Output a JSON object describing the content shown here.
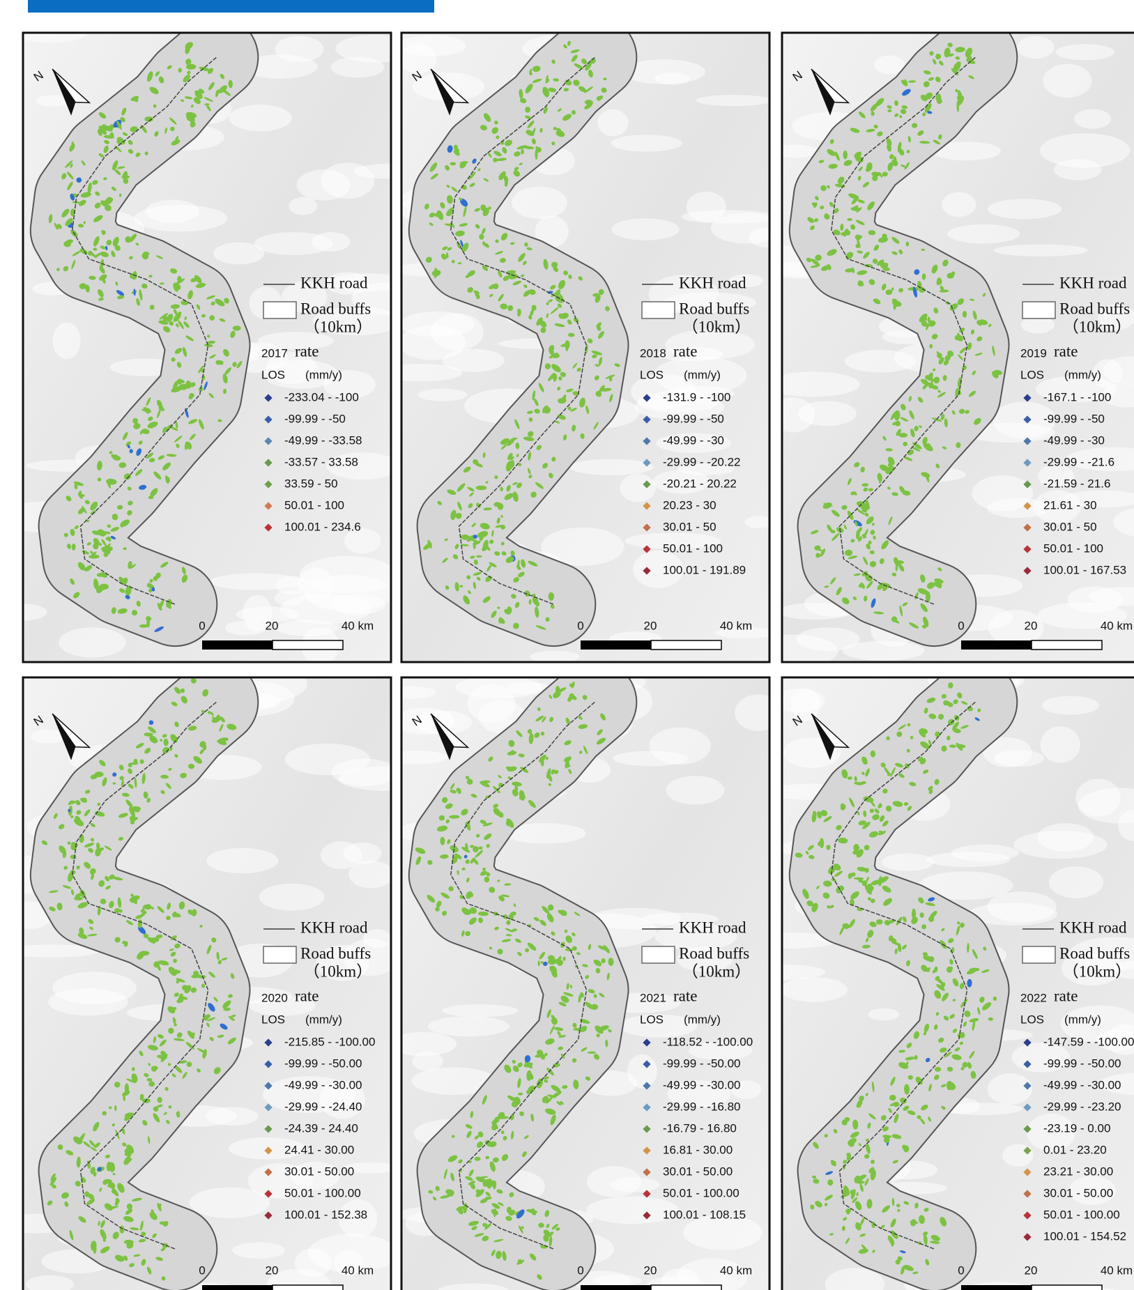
{
  "figure": {
    "north_label": "N",
    "legend_common": {
      "road": "KKH road",
      "buffer": "Road buffs",
      "buffer_width": "（10km）",
      "rate": "rate",
      "los": "LOS",
      "unit": "(mm/y)"
    },
    "scale_bar": {
      "zero": "0",
      "mid": "20",
      "end": "40 km"
    },
    "panels": [
      {
        "year": "2017",
        "classes": [
          {
            "label": "-233.04 - -100",
            "color": "#2b3f8c"
          },
          {
            "label": "-99.99 - -50",
            "color": "#3a5fa8"
          },
          {
            "label": "-49.99 - -33.58",
            "color": "#5b87b0"
          },
          {
            "label": "-33.57 - 33.58",
            "color": "#6a9a50"
          },
          {
            "label": "33.59 - 50",
            "color": "#6fa04e"
          },
          {
            "label": "50.01 - 100",
            "color": "#d07a52"
          },
          {
            "label": "100.01 - 234.6",
            "color": "#b8333a"
          }
        ]
      },
      {
        "year": "2018",
        "classes": [
          {
            "label": "-131.9 - -100",
            "color": "#2b3f8c"
          },
          {
            "label": "-99.99 - -50",
            "color": "#3a5fa8"
          },
          {
            "label": "-49.99 - -30",
            "color": "#4f78aa"
          },
          {
            "label": "-29.99 - -20.22",
            "color": "#6d9bc0"
          },
          {
            "label": "-20.21 - 20.22",
            "color": "#6a9a50"
          },
          {
            "label": "20.23 - 30",
            "color": "#d2954a"
          },
          {
            "label": "30.01 - 50",
            "color": "#c0704a"
          },
          {
            "label": "50.01 - 100",
            "color": "#b8333a"
          },
          {
            "label": "100.01 - 191.89",
            "color": "#9a2a3a"
          }
        ]
      },
      {
        "year": "2019",
        "classes": [
          {
            "label": "-167.1 - -100",
            "color": "#2b3f8c"
          },
          {
            "label": "-99.99 - -50",
            "color": "#3a5fa8"
          },
          {
            "label": "-49.99 - -30",
            "color": "#4f78aa"
          },
          {
            "label": "-29.99 - -21.6",
            "color": "#6d9bc0"
          },
          {
            "label": "-21.59 - 21.6",
            "color": "#6a9a50"
          },
          {
            "label": "21.61 - 30",
            "color": "#d2954a"
          },
          {
            "label": "30.01 - 50",
            "color": "#c0704a"
          },
          {
            "label": "50.01 - 100",
            "color": "#b8333a"
          },
          {
            "label": "100.01 - 167.53",
            "color": "#9a2a3a"
          }
        ]
      },
      {
        "year": "2020",
        "classes": [
          {
            "label": "-215.85 - -100.00",
            "color": "#2b3f8c"
          },
          {
            "label": "-99.99 - -50.00",
            "color": "#3a5fa8"
          },
          {
            "label": "-49.99 - -30.00",
            "color": "#4f78aa"
          },
          {
            "label": "-29.99 - -24.40",
            "color": "#6d9bc0"
          },
          {
            "label": "-24.39 - 24.40",
            "color": "#6a9a50"
          },
          {
            "label": "24.41 - 30.00",
            "color": "#d2954a"
          },
          {
            "label": "30.01 - 50.00",
            "color": "#c0704a"
          },
          {
            "label": "50.01 - 100.00",
            "color": "#b8333a"
          },
          {
            "label": "100.01 - 152.38",
            "color": "#9a2a3a"
          }
        ]
      },
      {
        "year": "2021",
        "classes": [
          {
            "label": "-118.52 - -100.00",
            "color": "#2b3f8c"
          },
          {
            "label": "-99.99 - -50.00",
            "color": "#3a5fa8"
          },
          {
            "label": "-49.99 - -30.00",
            "color": "#4f78aa"
          },
          {
            "label": "-29.99 - -16.80",
            "color": "#6d9bc0"
          },
          {
            "label": "-16.79 - 16.80",
            "color": "#6a9a50"
          },
          {
            "label": "16.81 - 30.00",
            "color": "#d2954a"
          },
          {
            "label": "30.01 - 50.00",
            "color": "#c0704a"
          },
          {
            "label": "50.01 - 100.00",
            "color": "#b8333a"
          },
          {
            "label": "100.01 - 108.15",
            "color": "#9a2a3a"
          }
        ]
      },
      {
        "year": "2022",
        "classes": [
          {
            "label": "-147.59 - -100.00",
            "color": "#2b3f8c"
          },
          {
            "label": "-99.99 - -50.00",
            "color": "#3a5fa8"
          },
          {
            "label": "-49.99 - -30.00",
            "color": "#4f78aa"
          },
          {
            "label": "-29.99 - -23.20",
            "color": "#6d9bc0"
          },
          {
            "label": "-23.19 - 0.00",
            "color": "#6a9a50"
          },
          {
            "label": "0.01 - 23.20",
            "color": "#7aa450"
          },
          {
            "label": "23.21 - 30.00",
            "color": "#d2954a"
          },
          {
            "label": "30.01 - 50.00",
            "color": "#c0704a"
          },
          {
            "label": "50.01 - 100.00",
            "color": "#b8333a"
          },
          {
            "label": "100.01 - 154.52",
            "color": "#9a2a3a"
          }
        ]
      }
    ]
  }
}
